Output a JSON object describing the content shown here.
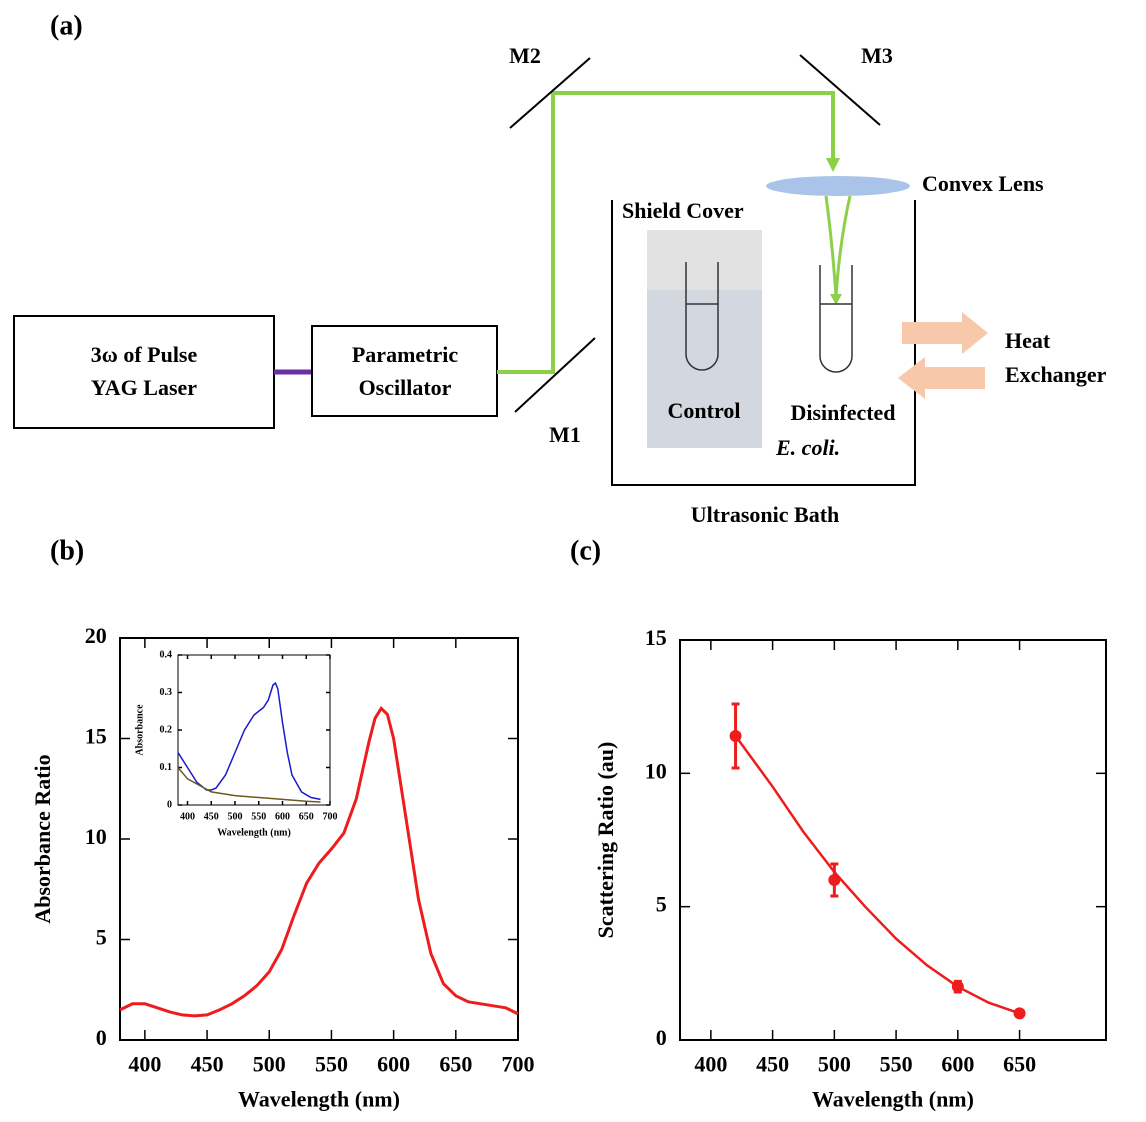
{
  "diagram": {
    "label": "(a)",
    "laser": [
      "3ω of Pulse",
      "YAG Laser"
    ],
    "oscillator": [
      "Parametric",
      "Oscillator"
    ],
    "mirrors": [
      "M1",
      "M2",
      "M3"
    ],
    "lens": "Convex Lens",
    "shield": "Shield Cover",
    "control": "Control",
    "disinfected": [
      "Disinfected",
      "E. coli."
    ],
    "heat": [
      "Heat",
      "Exchanger"
    ],
    "bath": "Ultrasonic Bath"
  },
  "chart_data": [
    {
      "type": "line",
      "panel_label": "(b)",
      "x_label": "Wavelength (nm)",
      "y_label": "Absorbance Ratio",
      "color": "#ee1c1c",
      "x": [
        380,
        390,
        400,
        410,
        420,
        430,
        440,
        450,
        460,
        470,
        480,
        490,
        500,
        510,
        520,
        530,
        540,
        550,
        560,
        570,
        580,
        585,
        590,
        595,
        600,
        610,
        620,
        630,
        640,
        650,
        660,
        670,
        680,
        690,
        700
      ],
      "values": [
        1.5,
        1.8,
        1.8,
        1.6,
        1.4,
        1.25,
        1.2,
        1.25,
        1.5,
        1.8,
        2.2,
        2.7,
        3.4,
        4.5,
        6.2,
        7.8,
        8.8,
        9.5,
        10.3,
        12,
        14.8,
        16,
        16.5,
        16.2,
        15,
        11,
        7,
        4.3,
        2.8,
        2.2,
        1.9,
        1.8,
        1.7,
        1.6,
        1.3
      ],
      "xlim": [
        380,
        700
      ],
      "xticks": [
        400,
        450,
        500,
        550,
        600,
        650,
        700
      ],
      "ylim": [
        0,
        20
      ],
      "yticks": [
        0,
        5,
        10,
        15,
        20
      ]
    },
    {
      "type": "line",
      "x_label": "Wavelength (nm)",
      "y_label": "Absorbance",
      "series": [
        {
          "color": "#1a1ad0",
          "x": [
            380,
            400,
            420,
            440,
            450,
            460,
            480,
            500,
            520,
            540,
            560,
            570,
            580,
            585,
            590,
            600,
            610,
            620,
            640,
            660,
            680
          ],
          "values": [
            0.14,
            0.1,
            0.06,
            0.04,
            0.04,
            0.045,
            0.08,
            0.14,
            0.2,
            0.24,
            0.26,
            0.28,
            0.32,
            0.325,
            0.31,
            0.22,
            0.14,
            0.08,
            0.035,
            0.02,
            0.015
          ]
        },
        {
          "color": "#6b5a1e",
          "x": [
            380,
            400,
            450,
            500,
            550,
            600,
            650,
            680
          ],
          "values": [
            0.1,
            0.07,
            0.035,
            0.025,
            0.02,
            0.015,
            0.01,
            0.008
          ]
        }
      ],
      "xlim": [
        380,
        700
      ],
      "xticks": [
        400,
        450,
        500,
        550,
        600,
        650,
        700
      ],
      "ylim": [
        0,
        0.4
      ],
      "yticks": [
        0,
        0.1,
        0.2,
        0.3,
        0.4
      ]
    },
    {
      "type": "scatter",
      "panel_label": "(c)",
      "x_label": "Wavelength (nm)",
      "y_label": "Scattering Ratio (au)",
      "color": "#ee1c1c",
      "x": [
        420,
        500,
        600,
        650
      ],
      "values": [
        11.4,
        6,
        2,
        1
      ],
      "errors": [
        1.2,
        0.6,
        0.2,
        0.1
      ],
      "fit": {
        "x": [
          420,
          450,
          475,
          500,
          525,
          550,
          575,
          600,
          625,
          650
        ],
        "values": [
          11.4,
          9.5,
          7.8,
          6.3,
          5.0,
          3.8,
          2.8,
          2.0,
          1.4,
          1.0
        ]
      },
      "xlim": [
        375,
        720
      ],
      "xticks": [
        400,
        450,
        500,
        550,
        600,
        650
      ],
      "ylim": [
        0,
        15
      ],
      "yticks": [
        0,
        5,
        10,
        15
      ]
    }
  ]
}
